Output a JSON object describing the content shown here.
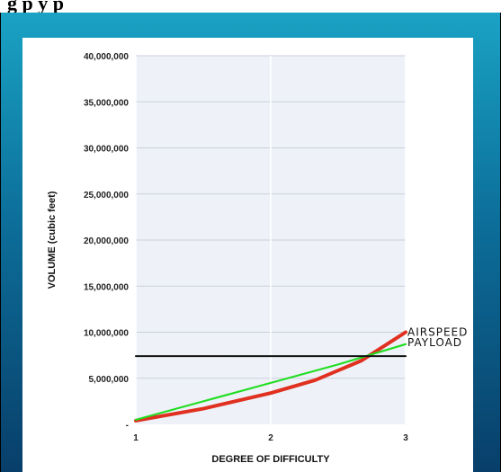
{
  "header": {
    "title_fragment": "g                  p                     y    p"
  },
  "chart_data": {
    "type": "line",
    "title": "",
    "xlabel": "DEGREE OF DIFFICULTY",
    "ylabel": "VOLUME (cubic feet)",
    "xlim": [
      1,
      3
    ],
    "ylim": [
      0,
      40000000
    ],
    "x_ticks": [
      "1",
      "2",
      "3"
    ],
    "y_ticks": [
      "-",
      "5,000,000",
      "10,000,000",
      "15,000,000",
      "20,000,000",
      "25,000,000",
      "30,000,000",
      "35,000,000",
      "40,000,000"
    ],
    "grid": true,
    "plot_background": "#eef2f8",
    "series": [
      {
        "name": "AIRSPEED",
        "color": "#e03020",
        "x": [
          1,
          1.5,
          2,
          2.33,
          2.67,
          3
        ],
        "y": [
          400000,
          1700000,
          3400000,
          4800000,
          6900000,
          10000000
        ]
      },
      {
        "name": "PAYLOAD",
        "color": "#22dd22",
        "x": [
          1,
          1.5,
          2,
          2.5,
          3
        ],
        "y": [
          500000,
          2500000,
          4500000,
          6500000,
          8700000
        ]
      },
      {
        "name": "",
        "color": "#111111",
        "x": [
          1,
          3
        ],
        "y": [
          7400000,
          7400000
        ]
      }
    ]
  }
}
